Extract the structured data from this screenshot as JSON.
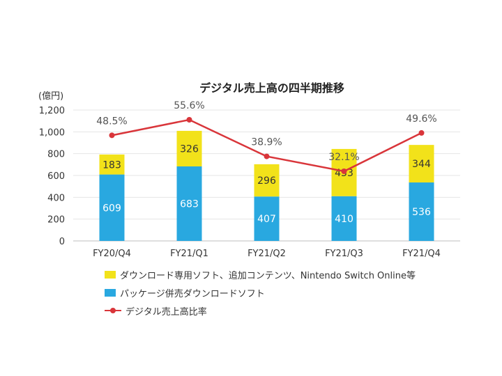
{
  "chart_data": {
    "type": "bar",
    "title": "デジタル売上高の四半期推移",
    "yunit": "(億円)",
    "ylim": [
      0,
      1200
    ],
    "yticks": [
      0,
      200,
      400,
      600,
      800,
      1000,
      1200
    ],
    "ytick_labels": [
      "0",
      "200",
      "400",
      "600",
      "800",
      "1,000",
      "1,200"
    ],
    "categories": [
      "FY20/Q4",
      "FY21/Q1",
      "FY21/Q2",
      "FY21/Q3",
      "FY21/Q4"
    ],
    "series": [
      {
        "name": "パッケージ併売ダウンロードソフト",
        "type": "bar",
        "stack": "bottom",
        "color": "#29A8E0",
        "values": [
          609,
          683,
          407,
          410,
          536
        ]
      },
      {
        "name": "ダウンロード専用ソフト、追加コンテンツ、Nintendo Switch Online等",
        "type": "bar",
        "stack": "top",
        "color": "#F2E21A",
        "values": [
          183,
          326,
          296,
          433,
          344
        ]
      },
      {
        "name": "デジタル売上高比率",
        "type": "line",
        "color": "#D9353A",
        "values": [
          48.5,
          55.6,
          38.9,
          32.1,
          49.6
        ],
        "labels": [
          "48.5%",
          "55.6%",
          "38.9%",
          "32.1%",
          "49.6%"
        ]
      }
    ],
    "legend_position": "bottom"
  }
}
